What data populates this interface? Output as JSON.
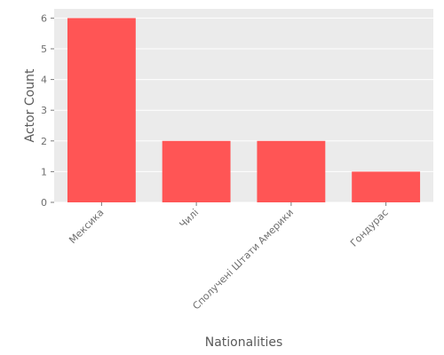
{
  "chart_data": {
    "type": "bar",
    "title": "",
    "xlabel": "Nationalities",
    "ylabel": "Actor Count",
    "categories": [
      "Мексика",
      "Чилі",
      "Сполучені Штати Америки",
      "Гондурас"
    ],
    "values": [
      6,
      2,
      2,
      1
    ],
    "ylim": [
      0,
      6.3
    ],
    "yticks": [
      0,
      1,
      2,
      3,
      4,
      5,
      6
    ],
    "grid": true,
    "legend": "none",
    "bar_color": "#ff5555",
    "background_color": "#ebebeb",
    "grid_color": "#ffffff"
  }
}
